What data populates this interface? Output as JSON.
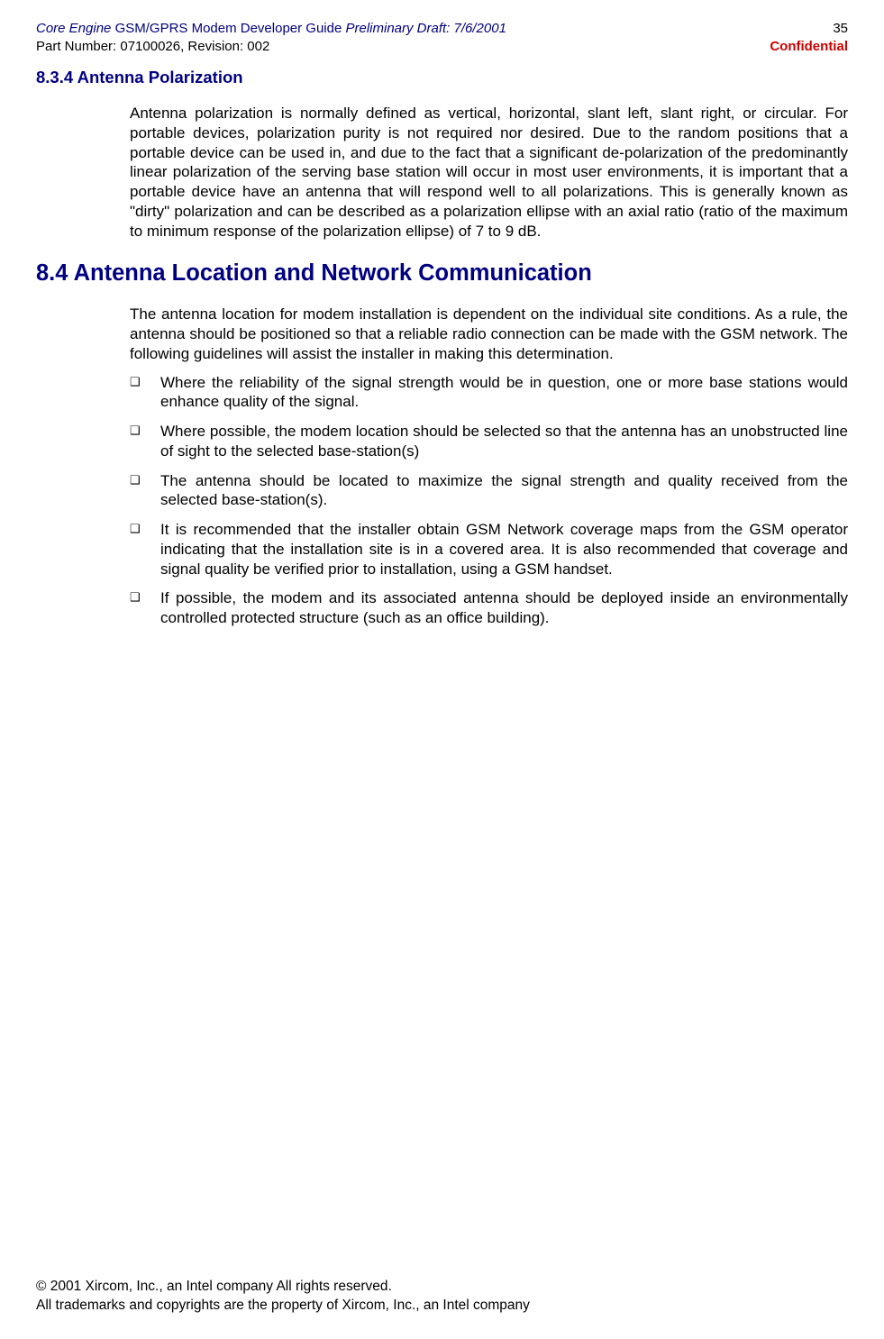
{
  "header": {
    "title_part1": "Core Engine ",
    "title_part2": "GSM/GPRS Modem Developer Guide ",
    "title_part3": "Preliminary Draft: 7/6/2001",
    "part_number": "Part Number: 07100026, Revision: 002",
    "page_number": "35",
    "confidential": "Confidential"
  },
  "section_834": {
    "heading": "8.3.4 Antenna Polarization",
    "paragraph": "Antenna polarization is normally defined as vertical, horizontal, slant left, slant right, or circular.  For portable devices, polarization purity is not required nor desired.  Due to the random positions that a portable device can be used in, and due to the fact that a significant de-polarization of the predominantly linear polarization of the serving base station will occur in most user environments, it is important that a portable device have an antenna that will respond well to all polarizations.  This is generally known as \"dirty\" polarization and can be described as a polarization ellipse with an axial ratio (ratio of the maximum to minimum response of the polarization ellipse) of 7 to 9 dB."
  },
  "section_84": {
    "heading": "8.4 Antenna Location and Network Communication",
    "intro": "The antenna location for modem installation is dependent on the individual site conditions. As a rule, the antenna should be positioned so that a reliable radio connection can be made with the GSM network. The following guidelines will assist the installer in making this determination.",
    "bullets": [
      "Where the reliability of the signal strength would be in question, one or more base stations would enhance quality of the signal.",
      "Where possible, the modem location should be selected so that the antenna has an unobstructed line of sight to the selected base-station(s)",
      "The antenna should be located to maximize the signal strength and quality received from the selected base-station(s).",
      "It is recommended that the installer obtain GSM Network coverage maps from the GSM operator indicating that the installation site is in a covered area. It is also recommended that coverage and signal quality be verified prior to installation, using a GSM handset.",
      "If possible, the modem and its associated antenna should be deployed inside an environmentally controlled protected structure (such as an office building)."
    ]
  },
  "footer": {
    "line1": "© 2001 Xircom, Inc., an Intel company All rights reserved.",
    "line2": "All trademarks and copyrights are the property of Xircom, Inc., an Intel company"
  }
}
